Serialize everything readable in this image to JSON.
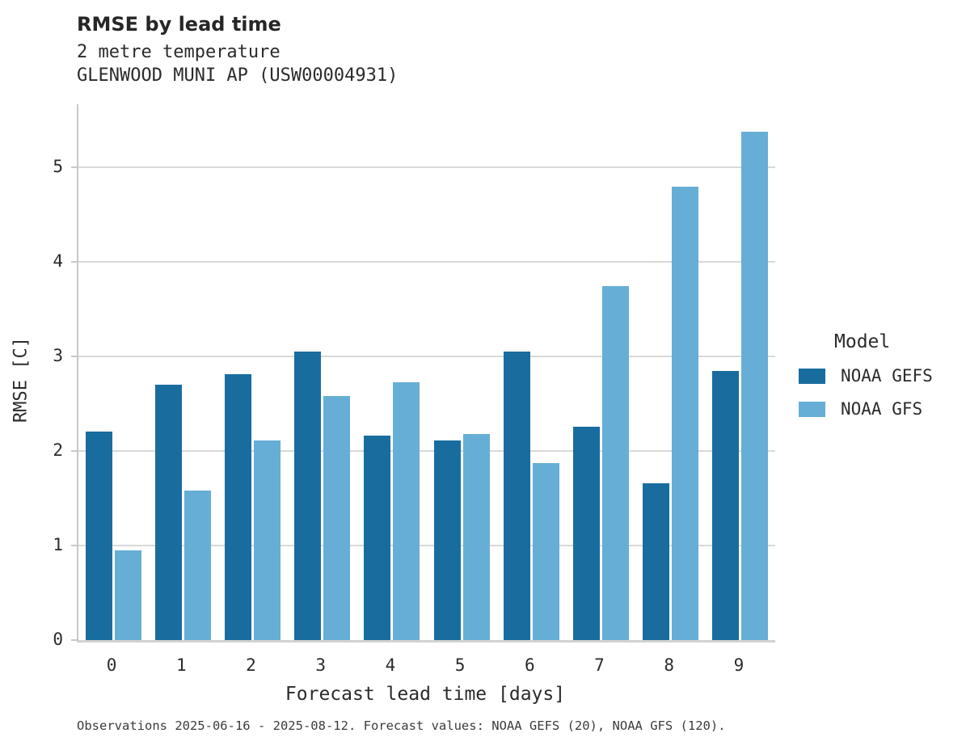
{
  "chart_data": {
    "type": "bar",
    "title": "RMSE by lead time",
    "subtitle1": "2 metre temperature",
    "subtitle2": "GLENWOOD MUNI AP (USW00004931)",
    "xlabel": "Forecast lead time [days]",
    "ylabel": "RMSE [C]",
    "categories": [
      "0",
      "1",
      "2",
      "3",
      "4",
      "5",
      "6",
      "7",
      "8",
      "9"
    ],
    "series": [
      {
        "name": "NOAA GEFS",
        "color": "#196d9e",
        "values": [
          2.21,
          2.7,
          2.81,
          3.05,
          2.16,
          2.11,
          3.05,
          2.26,
          1.66,
          2.85
        ]
      },
      {
        "name": "NOAA GFS",
        "color": "#66aed6",
        "values": [
          0.95,
          1.58,
          2.11,
          2.58,
          2.73,
          2.18,
          1.87,
          3.75,
          4.8,
          5.38
        ]
      }
    ],
    "ylim": [
      0,
      5.67
    ],
    "yticks": [
      0,
      1,
      2,
      3,
      4,
      5
    ],
    "grid": true,
    "legend": {
      "title": "Model",
      "position": "right"
    },
    "annotation": "Observations 2025-06-16 - 2025-08-12. Forecast values: NOAA GEFS (20), NOAA GFS (120)."
  },
  "colors": {
    "grid": "#d9d9d9",
    "spine": "#c9c9c9",
    "text": "#2b2b2b",
    "footer_text": "#3c3c3c"
  }
}
